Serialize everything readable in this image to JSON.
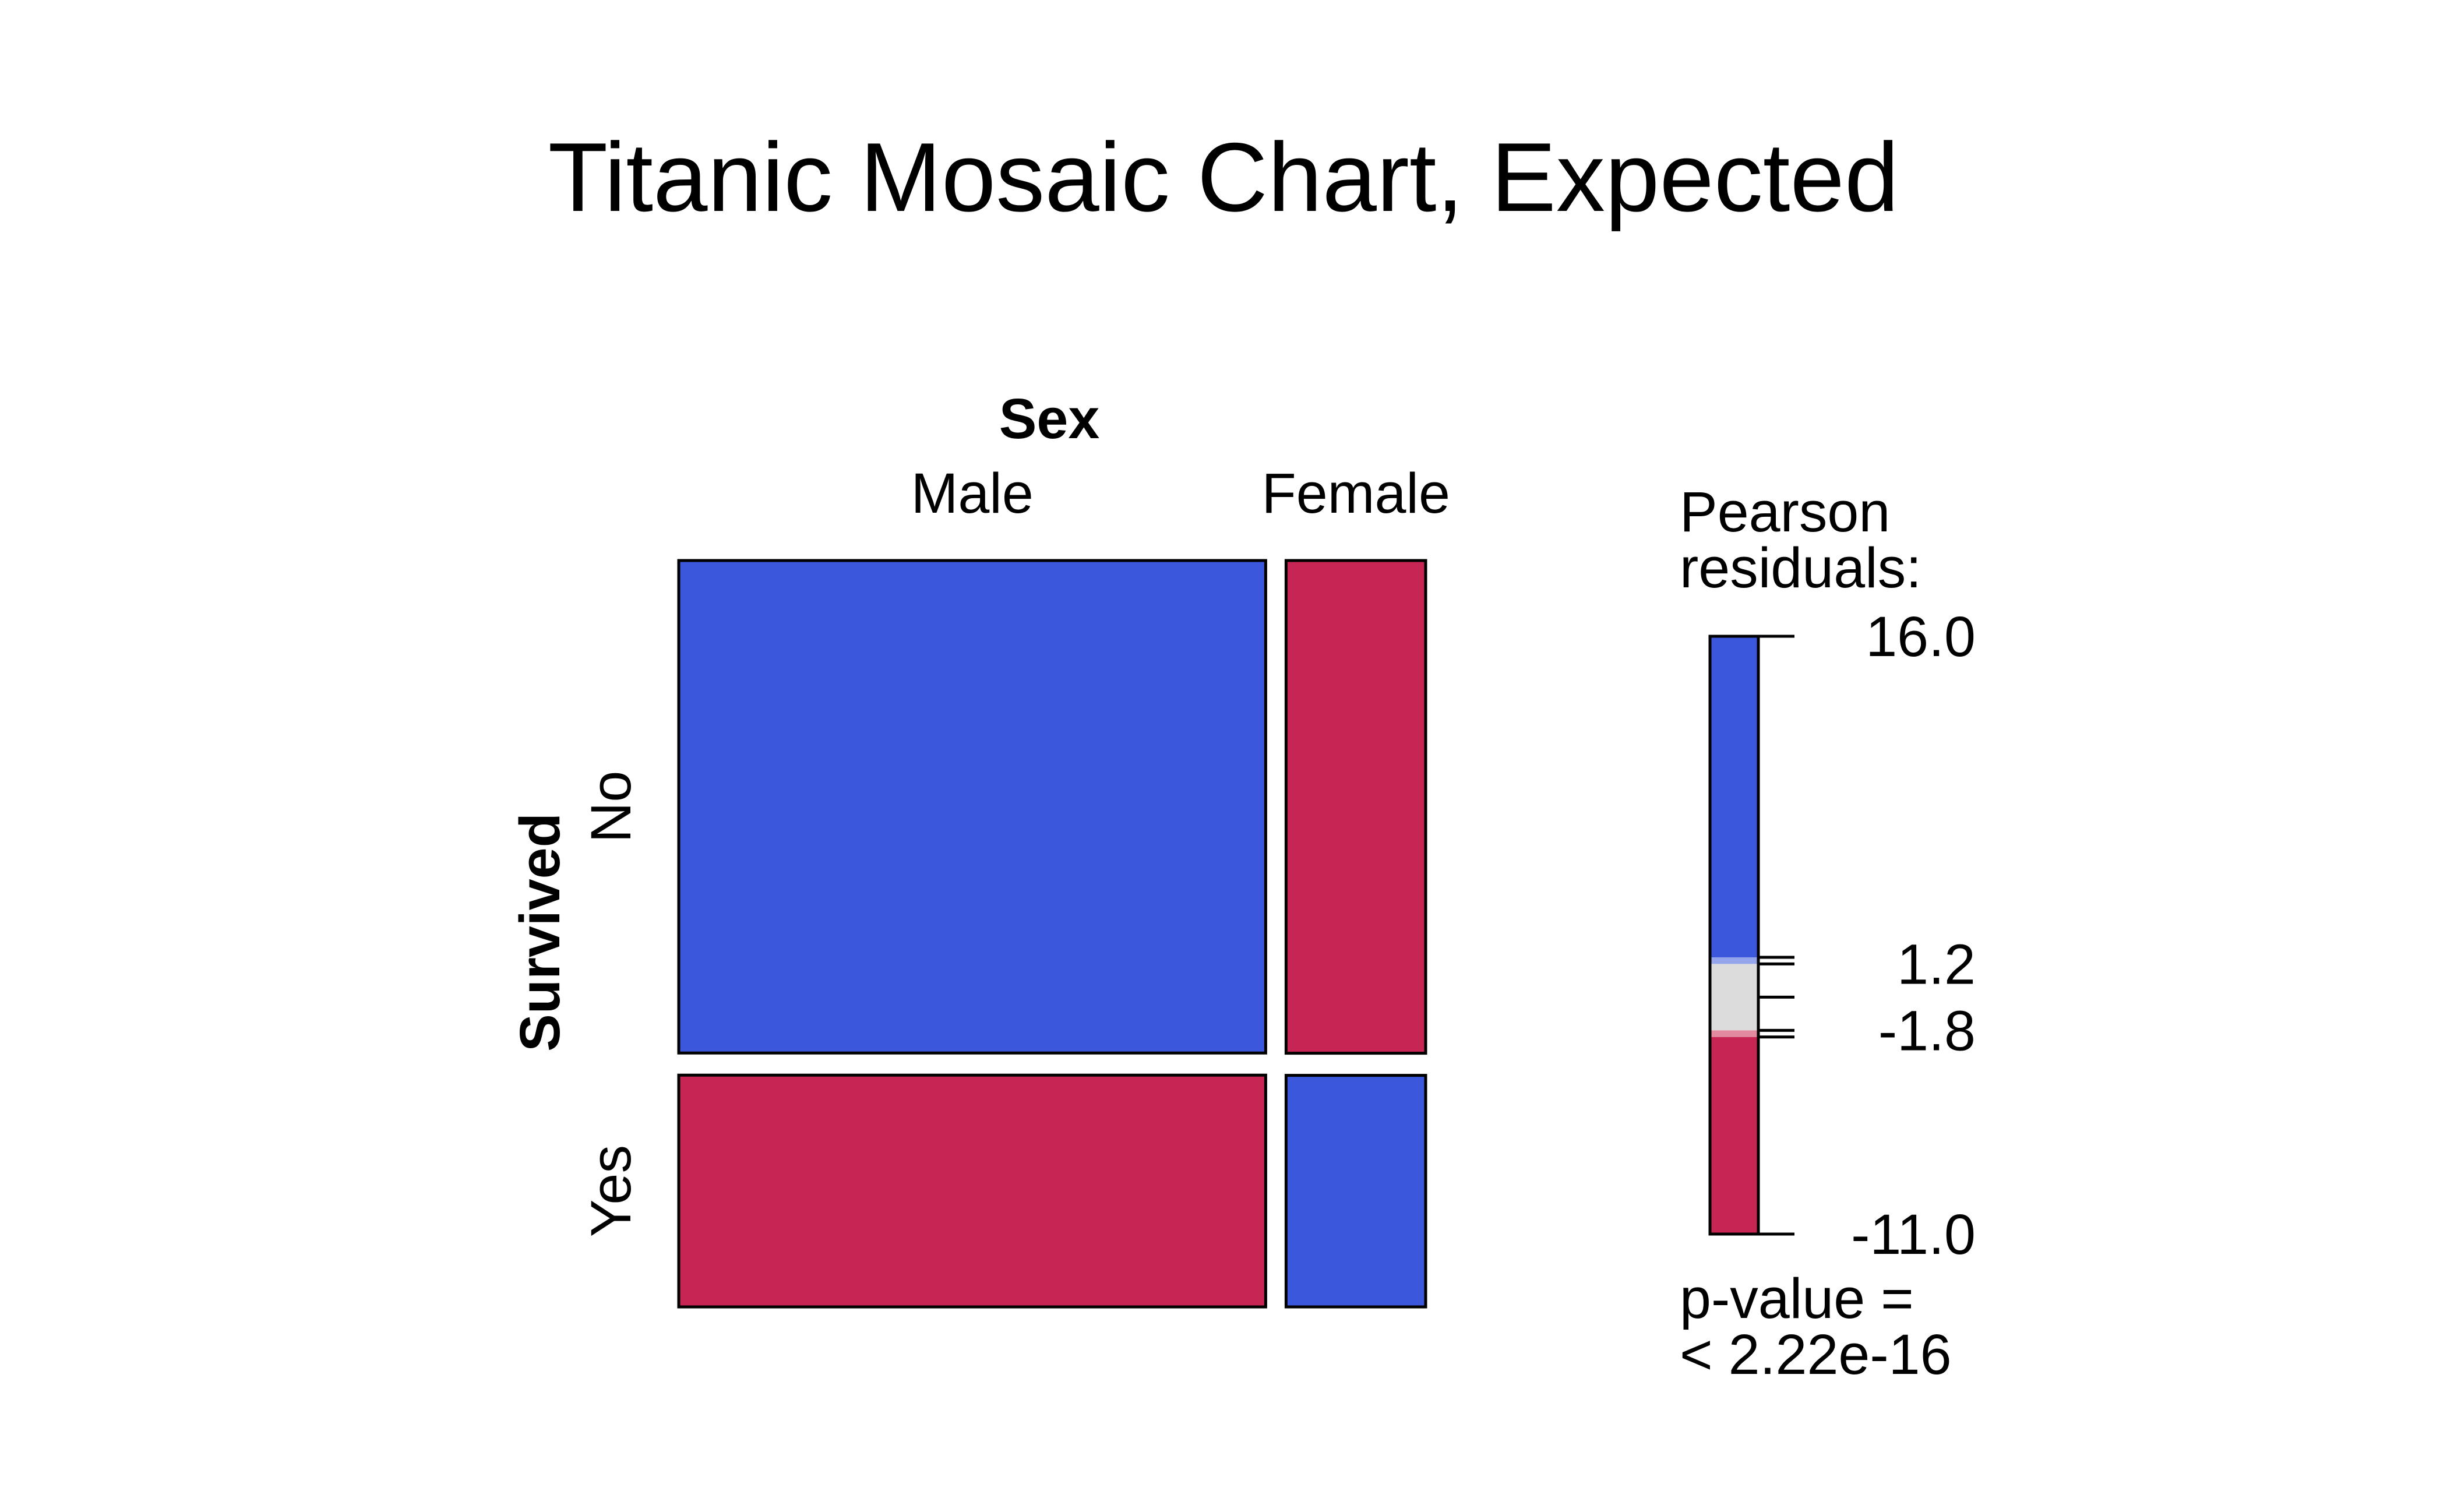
{
  "title": "Titanic Mosaic Chart, Expected",
  "chart_data": {
    "type": "mosaic",
    "title": "Titanic Mosaic Chart, Expected",
    "column_variable": "Sex",
    "row_variable": "Survived",
    "columns": [
      "Male",
      "Female"
    ],
    "rows": [
      "No",
      "Yes"
    ],
    "expected_counts": [
      [
        1203.6,
        286.4
      ],
      [
        566.4,
        134.6
      ]
    ],
    "cell_sign": [
      [
        "positive",
        "negative"
      ],
      [
        "negative",
        "positive"
      ]
    ],
    "legend": {
      "title_line1": "Pearson",
      "title_line2": "residuals:",
      "max": 16.0,
      "min": -11.0,
      "cutoffs": [
        1.2,
        -1.8
      ],
      "tick_labels": [
        "16.0",
        "1.2",
        "-1.8",
        "-11.0"
      ],
      "pvalue_line1": "p-value =",
      "pvalue_line2": "< 2.22e-16",
      "colors": {
        "positive": "#3B58DD",
        "positive_light": "#94A5EB",
        "neutral": "#DCDCDC",
        "negative_light": "#E38B9E",
        "negative": "#C72654"
      }
    }
  }
}
